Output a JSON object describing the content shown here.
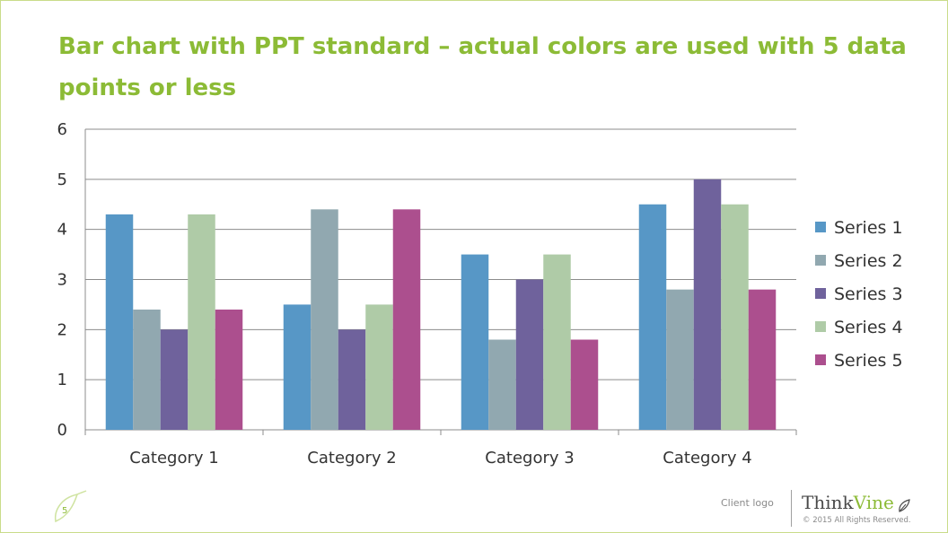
{
  "slide": {
    "title": "Bar chart with PPT standard – actual colors are used with 5 data points or less",
    "page_number": "5",
    "client_logo": "Client logo",
    "brand_think": "Think",
    "brand_vine": "Vine",
    "copyright": "© 2015 All Rights Reserved.",
    "accent_color": "#8cbb36",
    "icons": [
      "leaf-icon",
      "brand-leaf-icon"
    ]
  },
  "chart_data": {
    "type": "bar",
    "title": "",
    "xlabel": "",
    "ylabel": "",
    "categories": [
      "Category 1",
      "Category 2",
      "Category 3",
      "Category 4"
    ],
    "ylim": [
      0,
      6
    ],
    "yticks": [
      0,
      1,
      2,
      3,
      4,
      5,
      6
    ],
    "grid": true,
    "legend_position": "right",
    "series": [
      {
        "name": "Series 1",
        "color": "#5797c6",
        "values": [
          4.3,
          2.5,
          3.5,
          4.5
        ]
      },
      {
        "name": "Series 2",
        "color": "#91a8b0",
        "values": [
          2.4,
          4.4,
          1.8,
          2.8
        ]
      },
      {
        "name": "Series 3",
        "color": "#6f629c",
        "values": [
          2.0,
          2.0,
          3.0,
          5.0
        ]
      },
      {
        "name": "Series 4",
        "color": "#afcba7",
        "values": [
          4.3,
          2.5,
          3.5,
          4.5
        ]
      },
      {
        "name": "Series 5",
        "color": "#ac4f8e",
        "values": [
          2.4,
          4.4,
          1.8,
          2.8
        ]
      }
    ]
  }
}
